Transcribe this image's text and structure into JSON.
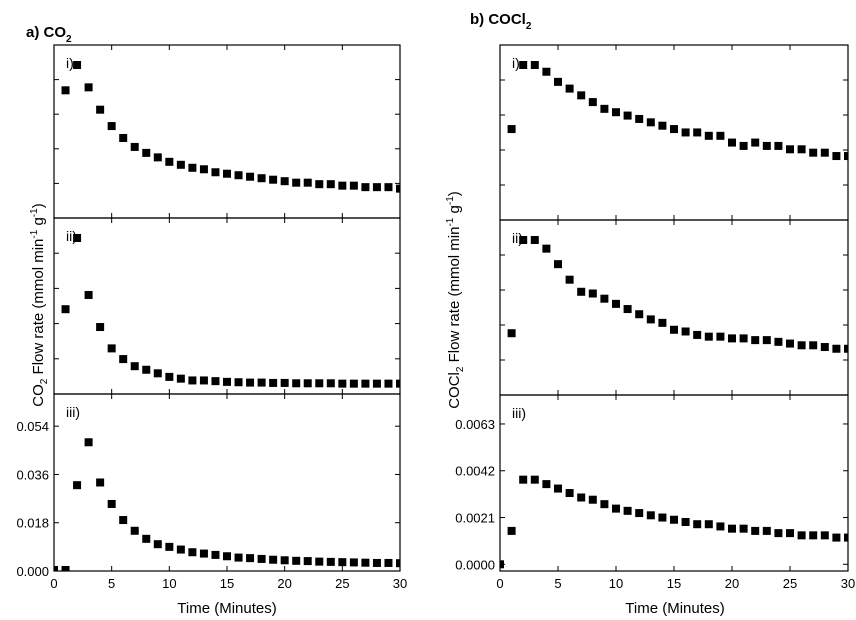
{
  "colors": {
    "marker": "#000000",
    "axis": "#000000",
    "background": "#ffffff"
  },
  "figure": {
    "panel_a": {
      "title": "a) CO",
      "title_sub": "2",
      "ylabel_pre": "CO",
      "ylabel_sub": "2",
      "ylabel_post": " Flow rate (mmol min",
      "ylabel_sup1": "-1",
      "ylabel_mid": " g",
      "ylabel_sup2": "-1",
      "ylabel_end": ")",
      "xlabel": "Time (Minutes)"
    },
    "panel_b": {
      "title": "b) COCl",
      "title_sub": "2",
      "ylabel_pre": "COCl",
      "ylabel_sub": "2",
      "ylabel_post": " Flow rate (mmol min",
      "ylabel_sup1": "-1",
      "ylabel_mid": " g",
      "ylabel_sup2": "-1",
      "ylabel_end": ")",
      "xlabel": "Time (Minutes)"
    }
  },
  "chart_data": [
    {
      "type": "scatter",
      "panel": "a) CO2",
      "subplot": "i)",
      "xlim": [
        0,
        30
      ],
      "x_ticks": [
        0,
        5,
        10,
        15,
        20,
        25,
        30
      ],
      "y_tick_labels": "none",
      "x": [
        1,
        2,
        3,
        4,
        5,
        6,
        7,
        8,
        9,
        10,
        11,
        12,
        13,
        14,
        15,
        16,
        17,
        18,
        19,
        20,
        21,
        22,
        23,
        24,
        25,
        26,
        27,
        28,
        29,
        30
      ],
      "values": [
        0.79,
        0.96,
        0.81,
        0.66,
        0.55,
        0.47,
        0.41,
        0.37,
        0.34,
        0.31,
        0.29,
        0.27,
        0.26,
        0.24,
        0.23,
        0.22,
        0.21,
        0.2,
        0.19,
        0.18,
        0.17,
        0.17,
        0.16,
        0.16,
        0.15,
        0.15,
        0.14,
        0.14,
        0.14,
        0.13
      ]
    },
    {
      "type": "scatter",
      "panel": "a) CO2",
      "subplot": "ii)",
      "xlim": [
        0,
        30
      ],
      "y_tick_labels": "none",
      "x": [
        1,
        2,
        3,
        4,
        5,
        6,
        7,
        8,
        9,
        10,
        11,
        12,
        13,
        14,
        15,
        16,
        17,
        18,
        19,
        20,
        21,
        22,
        23,
        24,
        25,
        26,
        27,
        28,
        29,
        30
      ],
      "values": [
        0.21,
        0.41,
        0.25,
        0.16,
        0.1,
        0.07,
        0.05,
        0.04,
        0.03,
        0.02,
        0.015,
        0.01,
        0.01,
        0.008,
        0.006,
        0.005,
        0.004,
        0.004,
        0.003,
        0.003,
        0.002,
        0.002,
        0.002,
        0.002,
        0.001,
        0.001,
        0.001,
        0.001,
        0.001,
        0.001
      ]
    },
    {
      "type": "scatter",
      "panel": "a) CO2",
      "subplot": "iii)",
      "xlim": [
        0,
        30
      ],
      "ylim": [
        0,
        0.066
      ],
      "x_ticks": [
        0,
        5,
        10,
        15,
        20,
        25,
        30
      ],
      "y_ticks": [
        "0.000",
        "0.018",
        "0.036",
        "0.054"
      ],
      "x": [
        0,
        1,
        2,
        3,
        4,
        5,
        6,
        7,
        8,
        9,
        10,
        11,
        12,
        13,
        14,
        15,
        16,
        17,
        18,
        19,
        20,
        21,
        22,
        23,
        24,
        25,
        26,
        27,
        28,
        29,
        30
      ],
      "values": [
        0.0,
        0.0,
        0.032,
        0.048,
        0.033,
        0.025,
        0.019,
        0.015,
        0.012,
        0.01,
        0.009,
        0.008,
        0.007,
        0.0065,
        0.006,
        0.0055,
        0.005,
        0.0048,
        0.0045,
        0.0042,
        0.004,
        0.0038,
        0.0037,
        0.0035,
        0.0034,
        0.0033,
        0.0032,
        0.0031,
        0.003,
        0.003,
        0.0029
      ]
    },
    {
      "type": "scatter",
      "panel": "b) COCl2",
      "subplot": "i)",
      "xlim": [
        0,
        30
      ],
      "y_tick_labels": "none",
      "x": [
        1,
        2,
        3,
        4,
        5,
        6,
        7,
        8,
        9,
        10,
        11,
        12,
        13,
        14,
        15,
        16,
        17,
        18,
        19,
        20,
        21,
        22,
        23,
        24,
        25,
        26,
        27,
        28,
        29,
        30
      ],
      "values": [
        0.24,
        0.43,
        0.43,
        0.41,
        0.38,
        0.36,
        0.34,
        0.32,
        0.3,
        0.29,
        0.28,
        0.27,
        0.26,
        0.25,
        0.24,
        0.23,
        0.23,
        0.22,
        0.22,
        0.2,
        0.19,
        0.2,
        0.19,
        0.19,
        0.18,
        0.18,
        0.17,
        0.17,
        0.16,
        0.16
      ]
    },
    {
      "type": "scatter",
      "panel": "b) COCl2",
      "subplot": "ii)",
      "xlim": [
        0,
        30
      ],
      "y_tick_labels": "none",
      "x": [
        1,
        2,
        3,
        4,
        5,
        6,
        7,
        8,
        9,
        10,
        11,
        12,
        13,
        14,
        15,
        16,
        17,
        18,
        19,
        20,
        21,
        22,
        23,
        24,
        25,
        26,
        27,
        28,
        29,
        30
      ],
      "values": [
        0.3,
        0.84,
        0.84,
        0.79,
        0.7,
        0.61,
        0.54,
        0.53,
        0.5,
        0.47,
        0.44,
        0.41,
        0.38,
        0.36,
        0.32,
        0.31,
        0.29,
        0.28,
        0.28,
        0.27,
        0.27,
        0.26,
        0.26,
        0.25,
        0.24,
        0.23,
        0.23,
        0.22,
        0.21,
        0.21
      ]
    },
    {
      "type": "scatter",
      "panel": "b) COCl2",
      "subplot": "iii)",
      "xlim": [
        0,
        30
      ],
      "ylim": [
        -0.0003,
        0.0076
      ],
      "x_ticks": [
        0,
        5,
        10,
        15,
        20,
        25,
        30
      ],
      "y_ticks": [
        "0.0000",
        "0.0021",
        "0.0042",
        "0.0063"
      ],
      "x": [
        0,
        1,
        2,
        3,
        4,
        5,
        6,
        7,
        8,
        9,
        10,
        11,
        12,
        13,
        14,
        15,
        16,
        17,
        18,
        19,
        20,
        21,
        22,
        23,
        24,
        25,
        26,
        27,
        28,
        29,
        30
      ],
      "values": [
        0.0,
        0.0015,
        0.0038,
        0.0038,
        0.0036,
        0.0034,
        0.0032,
        0.003,
        0.0029,
        0.0027,
        0.0025,
        0.0024,
        0.0023,
        0.0022,
        0.0021,
        0.002,
        0.0019,
        0.0018,
        0.0018,
        0.0017,
        0.0016,
        0.0016,
        0.0015,
        0.0015,
        0.0014,
        0.0014,
        0.0013,
        0.0013,
        0.0013,
        0.0012,
        0.0012
      ]
    }
  ]
}
